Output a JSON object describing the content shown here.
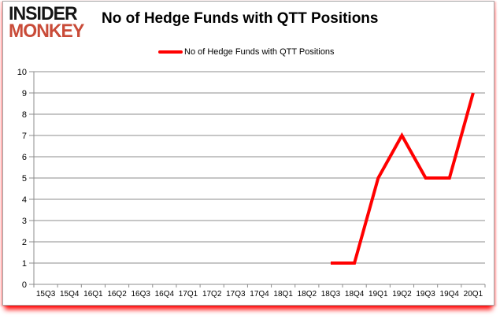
{
  "logo": {
    "line1": "INSIDER",
    "line2": "MONKEY"
  },
  "header": {
    "title": "No of Hedge Funds with QTT Positions"
  },
  "legend": {
    "label": "No of Hedge Funds with QTT Positions"
  },
  "colors": {
    "line": "#ff0000",
    "grid": "#8c8c8c",
    "axis": "#8c8c8c",
    "text": "#000000",
    "logo_red": "#c94b38",
    "shadow": "#ff0000"
  },
  "chart_data": {
    "type": "line",
    "title": "No of Hedge Funds with QTT Positions",
    "categories": [
      "15Q3",
      "15Q4",
      "16Q1",
      "16Q2",
      "16Q3",
      "16Q4",
      "17Q1",
      "17Q2",
      "17Q3",
      "17Q4",
      "18Q1",
      "18Q2",
      "18Q3",
      "18Q4",
      "19Q1",
      "19Q2",
      "19Q3",
      "19Q4",
      "20Q1"
    ],
    "series": [
      {
        "name": "No of Hedge Funds with QTT Positions",
        "color": "#ff0000",
        "values": [
          null,
          null,
          null,
          null,
          null,
          null,
          null,
          null,
          null,
          null,
          null,
          null,
          1,
          1,
          5,
          7,
          5,
          5,
          9
        ]
      }
    ],
    "xlabel": "",
    "ylabel": "",
    "ylim": [
      0,
      10
    ],
    "ytick_step": 1,
    "grid": true,
    "legend_position": "top"
  }
}
